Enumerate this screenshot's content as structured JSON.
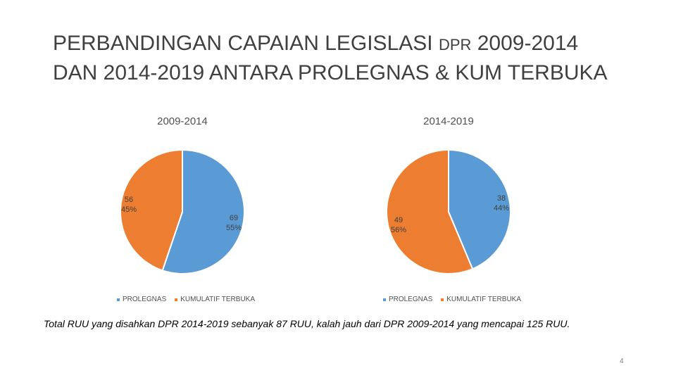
{
  "slide": {
    "title_line1_a": "PERBANDINGAN CAPAIAN LEGISLASI ",
    "title_line1_b": "DPR",
    "title_line1_c": " 2009-2014",
    "title_line2": "DAN 2014-2019 ANTARA PROLEGNAS & KUM TERBUKA",
    "caption": "Total RUU yang disahkan DPR 2014-2019 sebanyak 87 RUU, kalah jauh dari DPR 2009-2014 yang mencapai 125 RUU.",
    "page_number": "4"
  },
  "colors": {
    "prolegnas": "#5B9BD5",
    "kumulatif": "#ED7D31"
  },
  "chart_data": [
    {
      "type": "pie",
      "title": "2009-2014",
      "categories": [
        "PROLEGNAS",
        "KUMULATIF TERBUKA"
      ],
      "values": [
        69,
        56
      ],
      "percent_labels": [
        "55%",
        "45%"
      ],
      "legend": [
        "PROLEGNAS",
        "KUMULATIF TERBUKA"
      ],
      "legend_position": "bottom"
    },
    {
      "type": "pie",
      "title": "2014-2019",
      "categories": [
        "PROLEGNAS",
        "KUMULATIF TERBUKA"
      ],
      "values": [
        38,
        49
      ],
      "percent_labels": [
        "44%",
        "56%"
      ],
      "legend": [
        "PROLEGNAS",
        "KUMULATIF TERBUKA"
      ],
      "legend_position": "bottom"
    }
  ]
}
